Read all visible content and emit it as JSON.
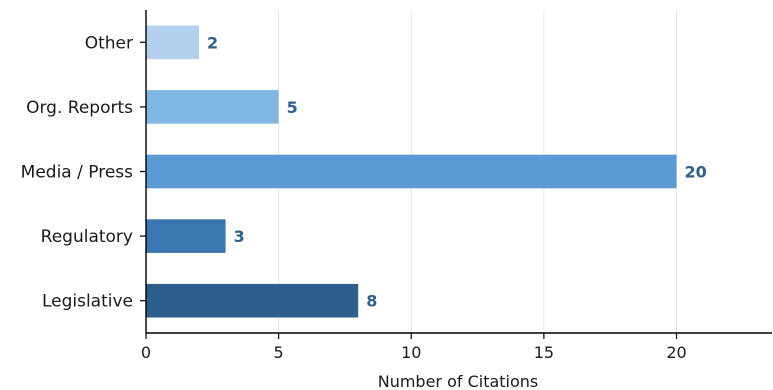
{
  "chart_data": {
    "type": "bar",
    "orientation": "horizontal",
    "categories": [
      "Legislative",
      "Regulatory",
      "Media / Press",
      "Org. Reports",
      "Other"
    ],
    "values": [
      8,
      3,
      20,
      5,
      2
    ],
    "value_labels": [
      "8",
      "3",
      "20",
      "5",
      "2"
    ],
    "colors": [
      "#2e5f8a",
      "#3a76b0",
      "#5b9bd5",
      "#82b6e2",
      "#b3d1ee"
    ],
    "title": "",
    "xlabel": "Number of Citations",
    "ylabel": "",
    "xlim": [
      0,
      23.6
    ],
    "xticks": [
      0,
      5,
      10,
      15,
      20
    ],
    "xtick_labels": [
      "0",
      "5",
      "10",
      "15",
      "20"
    ],
    "grid": "vertical",
    "legend": "none",
    "value_label_color": "#2f5f8a"
  }
}
